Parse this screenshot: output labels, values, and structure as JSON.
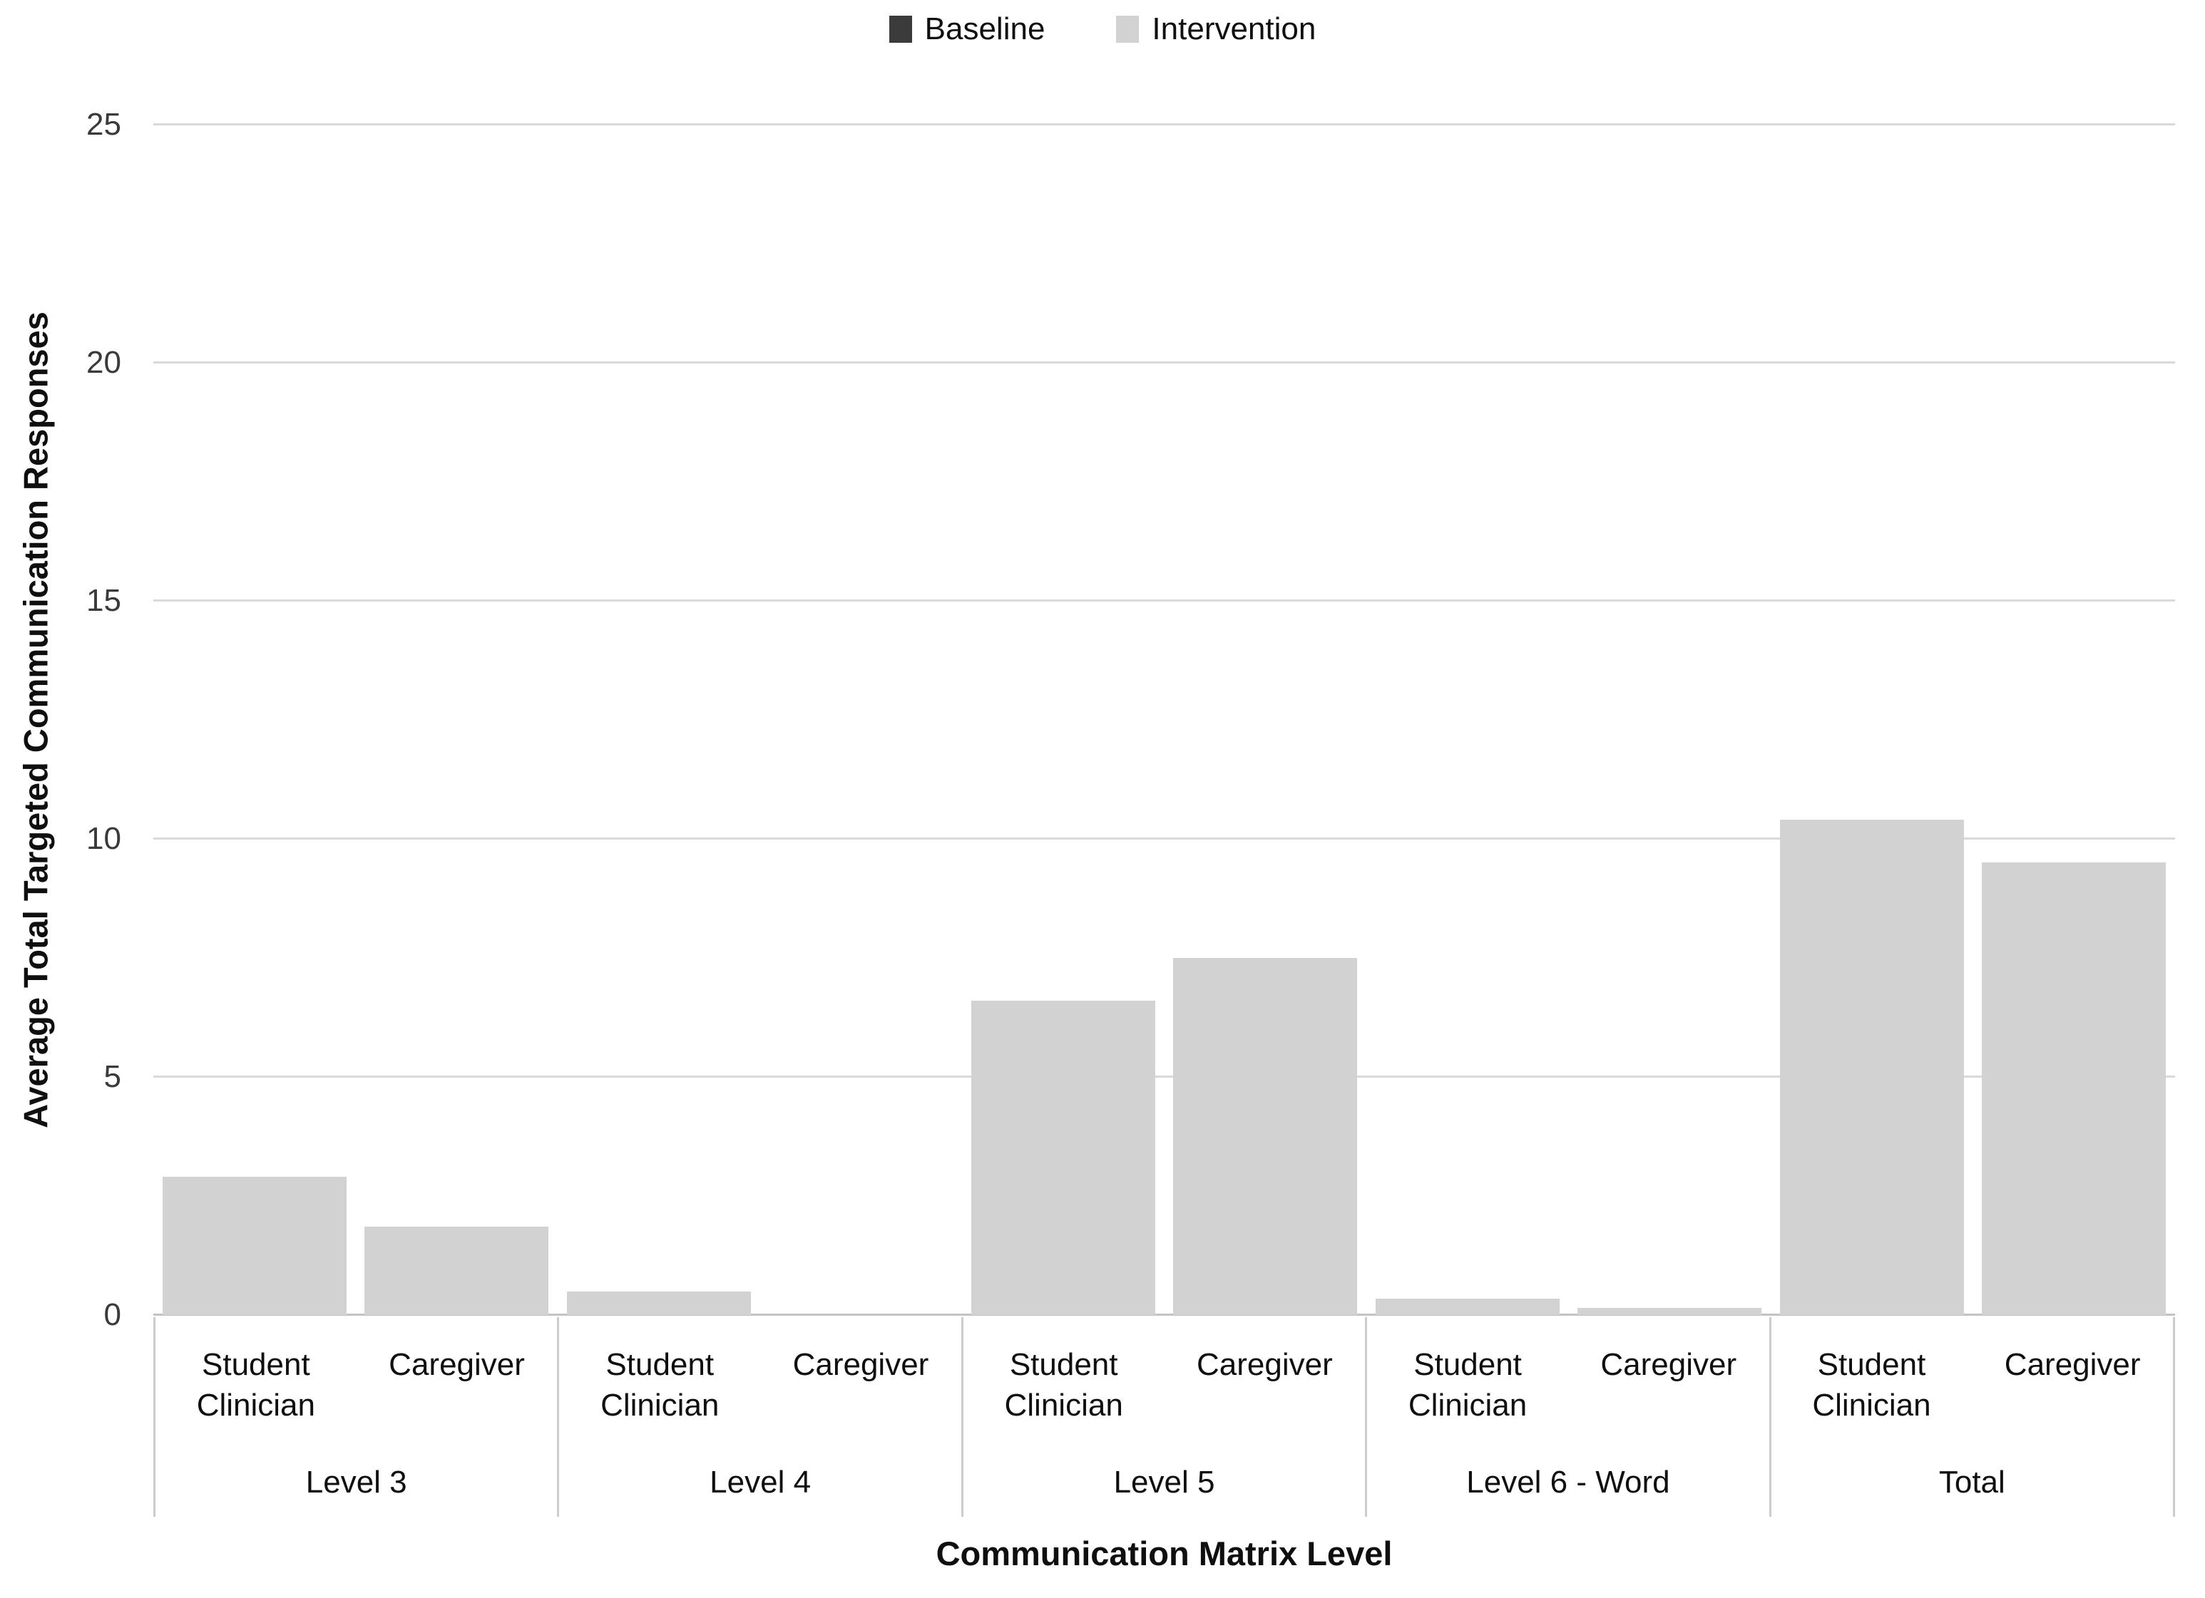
{
  "legend": {
    "position": "top",
    "items": [
      {
        "label": "Baseline",
        "color": "#3b3b3b"
      },
      {
        "label": "Intervention",
        "color": "#d2d2d2"
      }
    ]
  },
  "y_axis": {
    "title": "Average Total Targeted Communication Responses",
    "ticks": [
      0,
      5,
      10,
      15,
      20,
      25
    ],
    "min": 0,
    "max": 25
  },
  "x_axis": {
    "title": "Communication Matrix Level"
  },
  "chart_data": {
    "type": "bar",
    "title": "",
    "categories": [
      "Level 3",
      "Level 4",
      "Level 5",
      "Level 6 - Word",
      "Total"
    ],
    "sub_categories": [
      "Student Clinician",
      "Caregiver"
    ],
    "series": [
      {
        "name": "Baseline",
        "color": "#3b3b3b",
        "values": [
          [
            0,
            0
          ],
          [
            0,
            0
          ],
          [
            0,
            0
          ],
          [
            0,
            0
          ],
          [
            0,
            0
          ]
        ]
      },
      {
        "name": "Intervention",
        "color": "#d2d2d2",
        "values": [
          [
            2.9,
            1.85
          ],
          [
            0.5,
            0
          ],
          [
            6.6,
            7.5
          ],
          [
            0.35,
            0.15
          ],
          [
            10.4,
            9.5
          ]
        ]
      }
    ],
    "ylim": [
      0,
      25
    ],
    "grid": true,
    "gridline_color": "#d9d9d9",
    "legend_position": "top"
  }
}
